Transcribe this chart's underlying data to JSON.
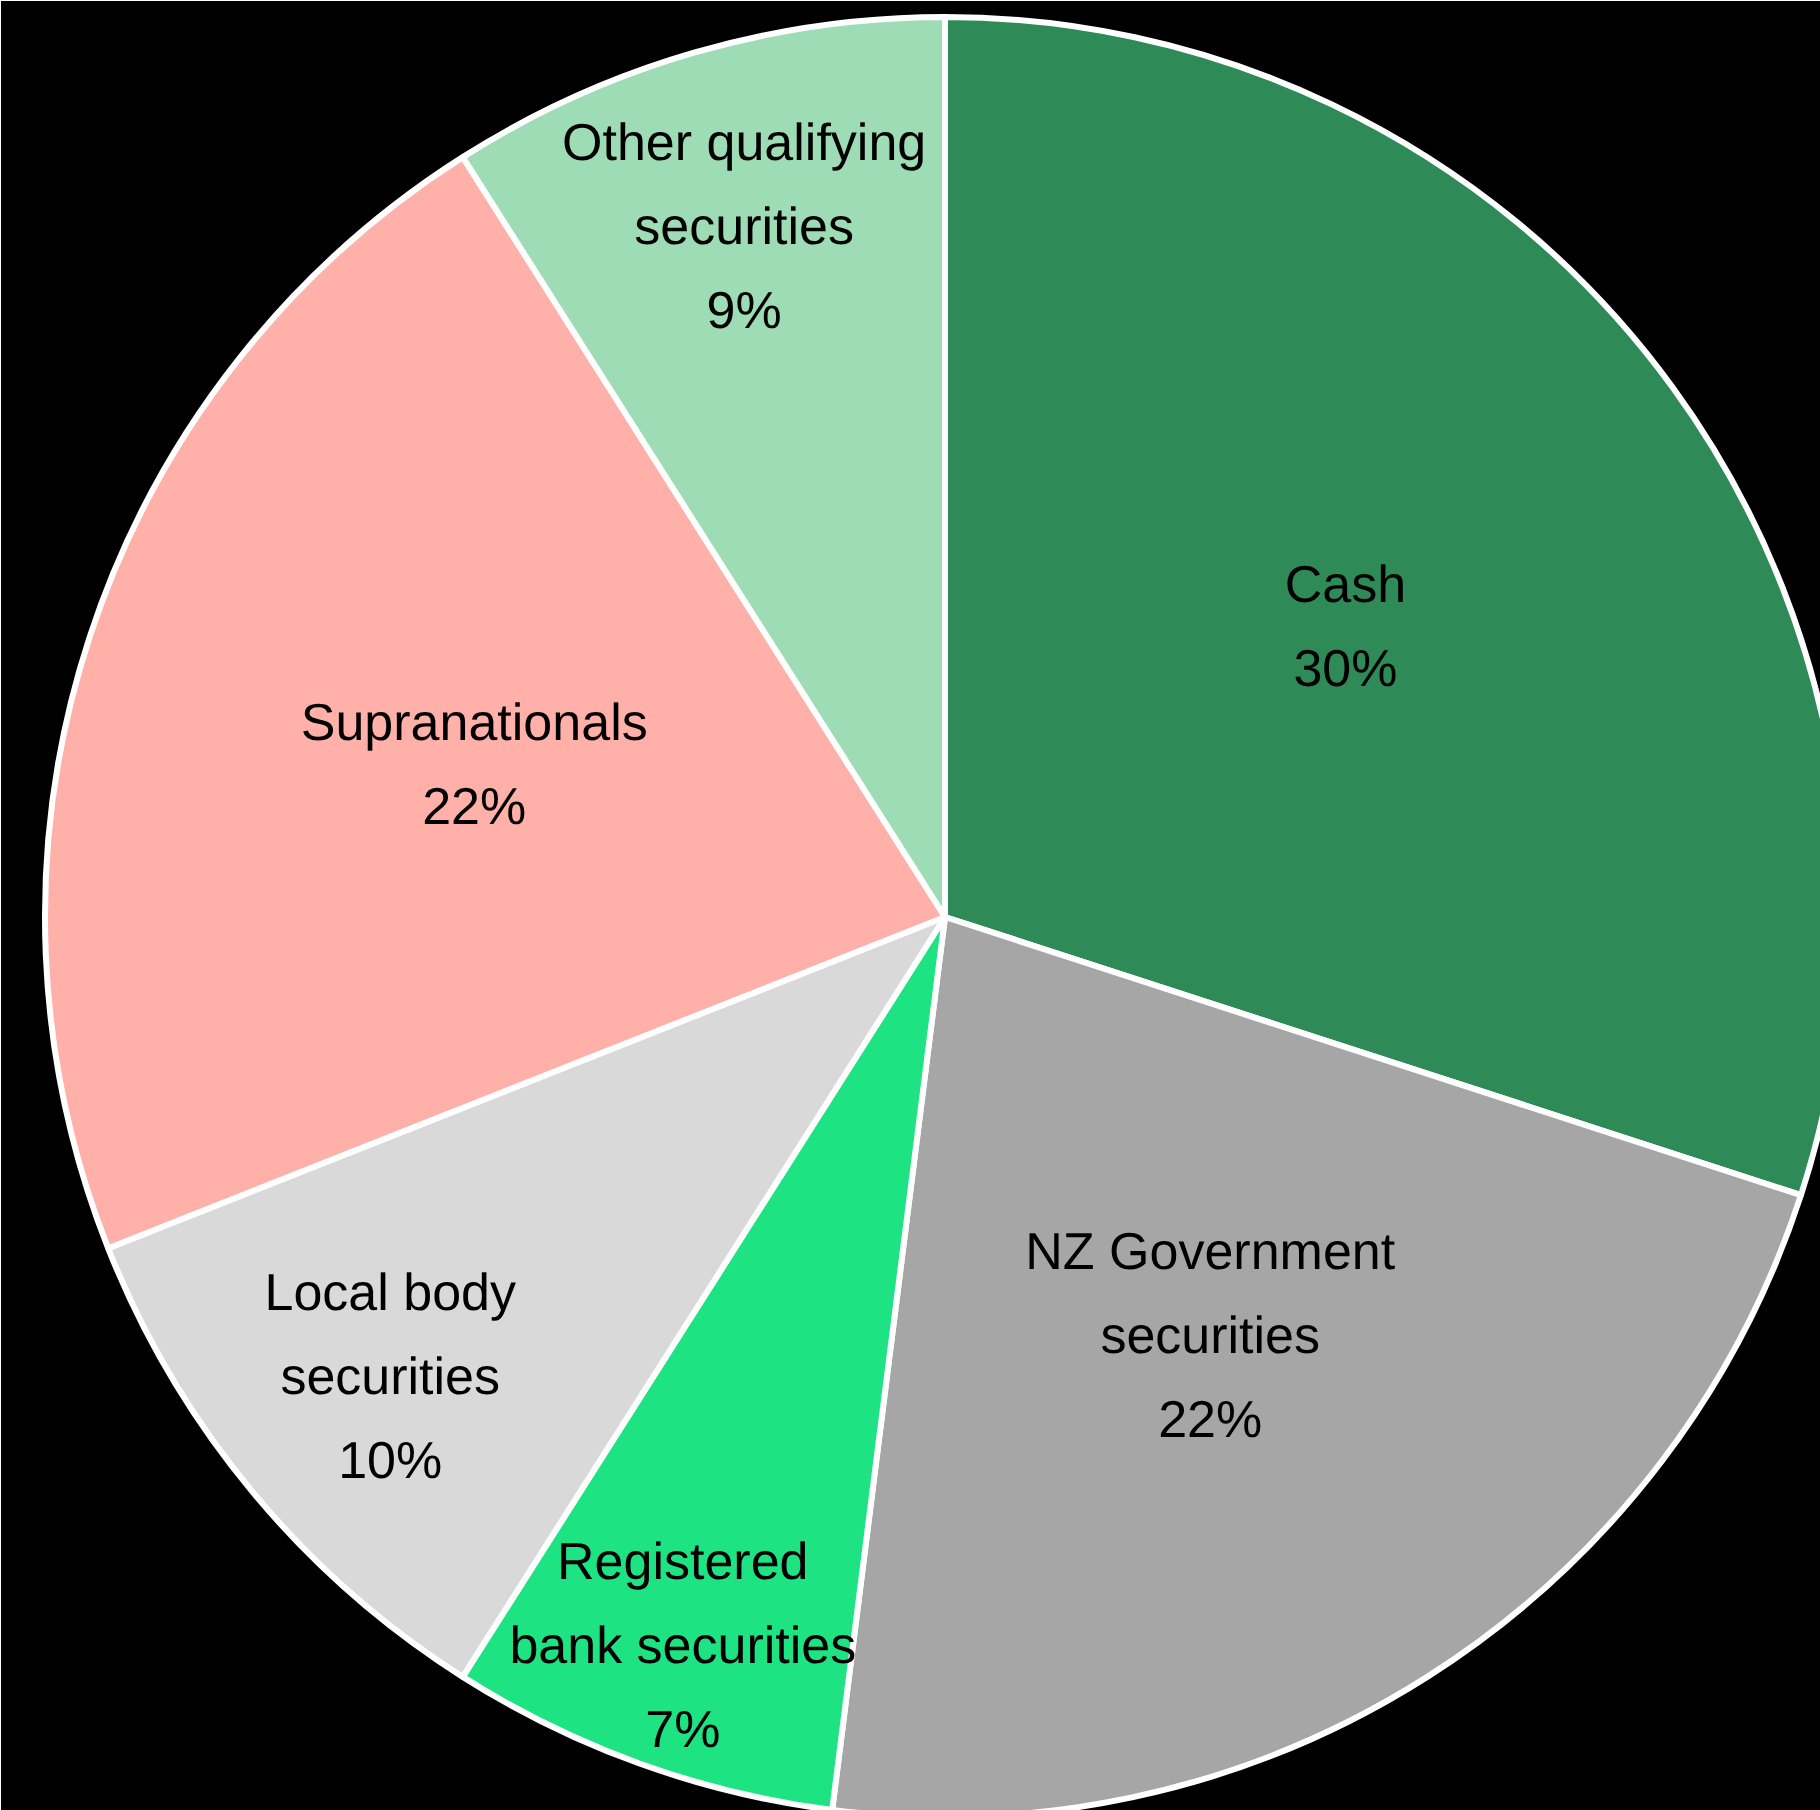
{
  "chart_data": {
    "type": "pie",
    "categories": [
      "Cash",
      "NZ Government\nsecurities",
      "Registered\nbank securities",
      "Local body\nsecurities",
      "Supranationals",
      "Other qualifying\nsecurities"
    ],
    "values": [
      30,
      22,
      7,
      10,
      22,
      9
    ],
    "colors": [
      "#2e8b57",
      "#a6a6a6",
      "#1de382",
      "#d9d9d9",
      "#ffb0a8",
      "#9edcb5"
    ],
    "value_labels": [
      "30%",
      "22%",
      "7%",
      "10%",
      "22%",
      "9%"
    ]
  }
}
